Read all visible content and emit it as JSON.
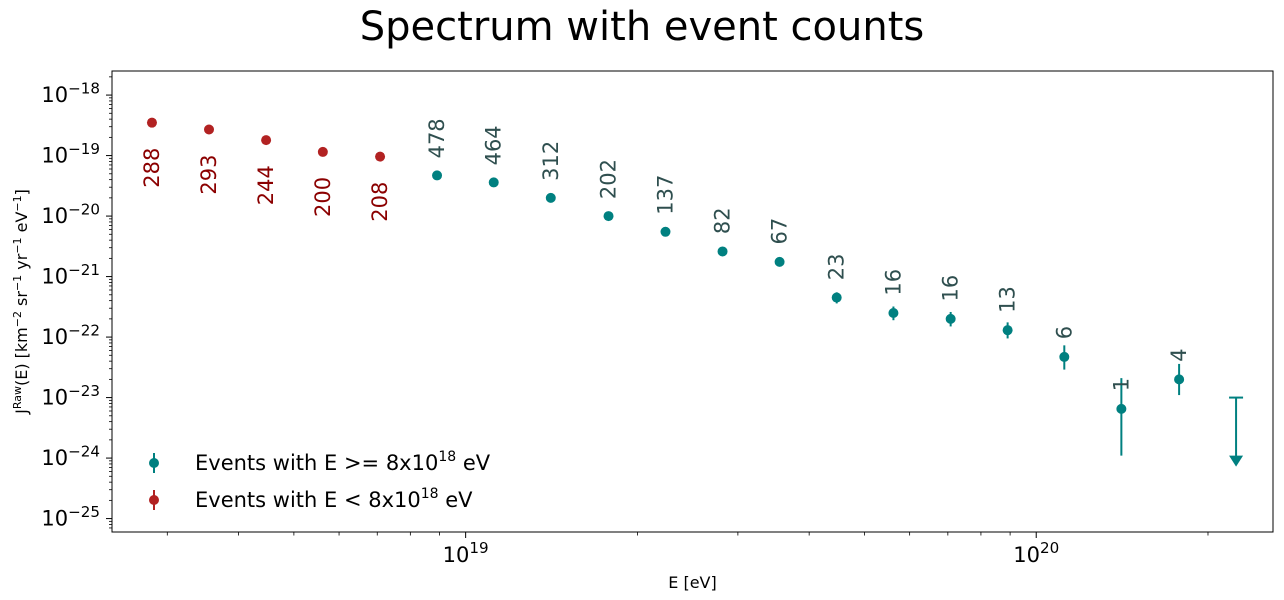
{
  "chart_data": {
    "type": "scatter",
    "title": "Spectrum with event counts",
    "xlabel": "E [eV]",
    "ylabel": "J^{Raw}(E) [km^{-2} sr^{-1} yr^{-1} eV^{-1}]",
    "x_scale": "log",
    "y_scale": "log",
    "xlim": [
      2.4e+18,
      2.6e+20
    ],
    "ylim": [
      6e-26,
      2.5e-18
    ],
    "x_ticks": [
      {
        "value": 1e+19,
        "base": "10",
        "exp": "19"
      },
      {
        "value": 1e+20,
        "base": "10",
        "exp": "20"
      }
    ],
    "y_ticks": [
      {
        "value": 1e-25,
        "base": "10",
        "exp": "−25"
      },
      {
        "value": 1e-24,
        "base": "10",
        "exp": "−24"
      },
      {
        "value": 1e-23,
        "base": "10",
        "exp": "−23"
      },
      {
        "value": 1e-22,
        "base": "10",
        "exp": "−22"
      },
      {
        "value": 1e-21,
        "base": "10",
        "exp": "−21"
      },
      {
        "value": 1e-20,
        "base": "10",
        "exp": "−20"
      },
      {
        "value": 1e-19,
        "base": "10",
        "exp": "−19"
      },
      {
        "value": 1e-18,
        "base": "10",
        "exp": "−18"
      }
    ],
    "grid": false,
    "legend_position": "lower-left",
    "series": [
      {
        "name": "Events with E < 8x10^18 eV",
        "name_parts": [
          "Events with E < 8x10",
          "18",
          " eV"
        ],
        "color": "#b22222",
        "label_color": "#8b0000",
        "label_position": "below",
        "points": [
          {
            "x": 2.82e+18,
            "y": 3.5e-19,
            "count": "288"
          },
          {
            "x": 3.55e+18,
            "y": 2.7e-19,
            "count": "293"
          },
          {
            "x": 4.47e+18,
            "y": 1.8e-19,
            "count": "244"
          },
          {
            "x": 5.62e+18,
            "y": 1.15e-19,
            "count": "200"
          },
          {
            "x": 7.08e+18,
            "y": 9.6e-20,
            "count": "208"
          }
        ]
      },
      {
        "name": "Events with E >= 8x10^18 eV",
        "name_parts": [
          "Events with E >= 8x10",
          "18",
          " eV"
        ],
        "color": "#008080",
        "label_color": "#2f4f4f",
        "label_position": "above",
        "points": [
          {
            "x": 8.91e+18,
            "y": 4.7e-20,
            "count": "478",
            "yerr": [
              4.5e-20,
              4.9e-20
            ]
          },
          {
            "x": 1.12e+19,
            "y": 3.6e-20,
            "count": "464",
            "yerr": [
              3.45e-20,
              3.75e-20
            ]
          },
          {
            "x": 1.41e+19,
            "y": 2e-20,
            "count": "312",
            "yerr": [
              1.9e-20,
              2.1e-20
            ]
          },
          {
            "x": 1.78e+19,
            "y": 1e-20,
            "count": "202",
            "yerr": [
              9.3e-21,
              1.07e-20
            ]
          },
          {
            "x": 2.24e+19,
            "y": 5.5e-21,
            "count": "137",
            "yerr": [
              5e-21,
              6e-21
            ]
          },
          {
            "x": 2.82e+19,
            "y": 2.6e-21,
            "count": "82",
            "yerr": [
              2.3e-21,
              2.9e-21
            ]
          },
          {
            "x": 3.55e+19,
            "y": 1.75e-21,
            "count": "67",
            "yerr": [
              1.55e-21,
              1.95e-21
            ]
          },
          {
            "x": 4.47e+19,
            "y": 4.5e-22,
            "count": "23",
            "yerr": [
              3.6e-22,
              5.5e-22
            ]
          },
          {
            "x": 5.62e+19,
            "y": 2.5e-22,
            "count": "16",
            "yerr": [
              1.9e-22,
              3.2e-22
            ]
          },
          {
            "x": 7.08e+19,
            "y": 2e-22,
            "count": "16",
            "yerr": [
              1.5e-22,
              2.6e-22
            ]
          },
          {
            "x": 8.91e+19,
            "y": 1.3e-22,
            "count": "13",
            "yerr": [
              9.5e-23,
              1.75e-22
            ]
          },
          {
            "x": 1.12e+20,
            "y": 4.7e-23,
            "count": "6",
            "yerr": [
              2.9e-23,
              7.3e-23
            ]
          },
          {
            "x": 1.41e+20,
            "y": 6.5e-24,
            "count": "1",
            "yerr": [
              1.1e-24,
              2.1e-23
            ]
          },
          {
            "x": 1.78e+20,
            "y": 2e-23,
            "count": "4",
            "yerr": [
              1.1e-23,
              3.6e-23
            ]
          }
        ],
        "upper_limits": [
          {
            "x": 2.24e+20,
            "y_top": 1e-23,
            "y_arrow": 7.5e-25
          }
        ]
      }
    ]
  }
}
